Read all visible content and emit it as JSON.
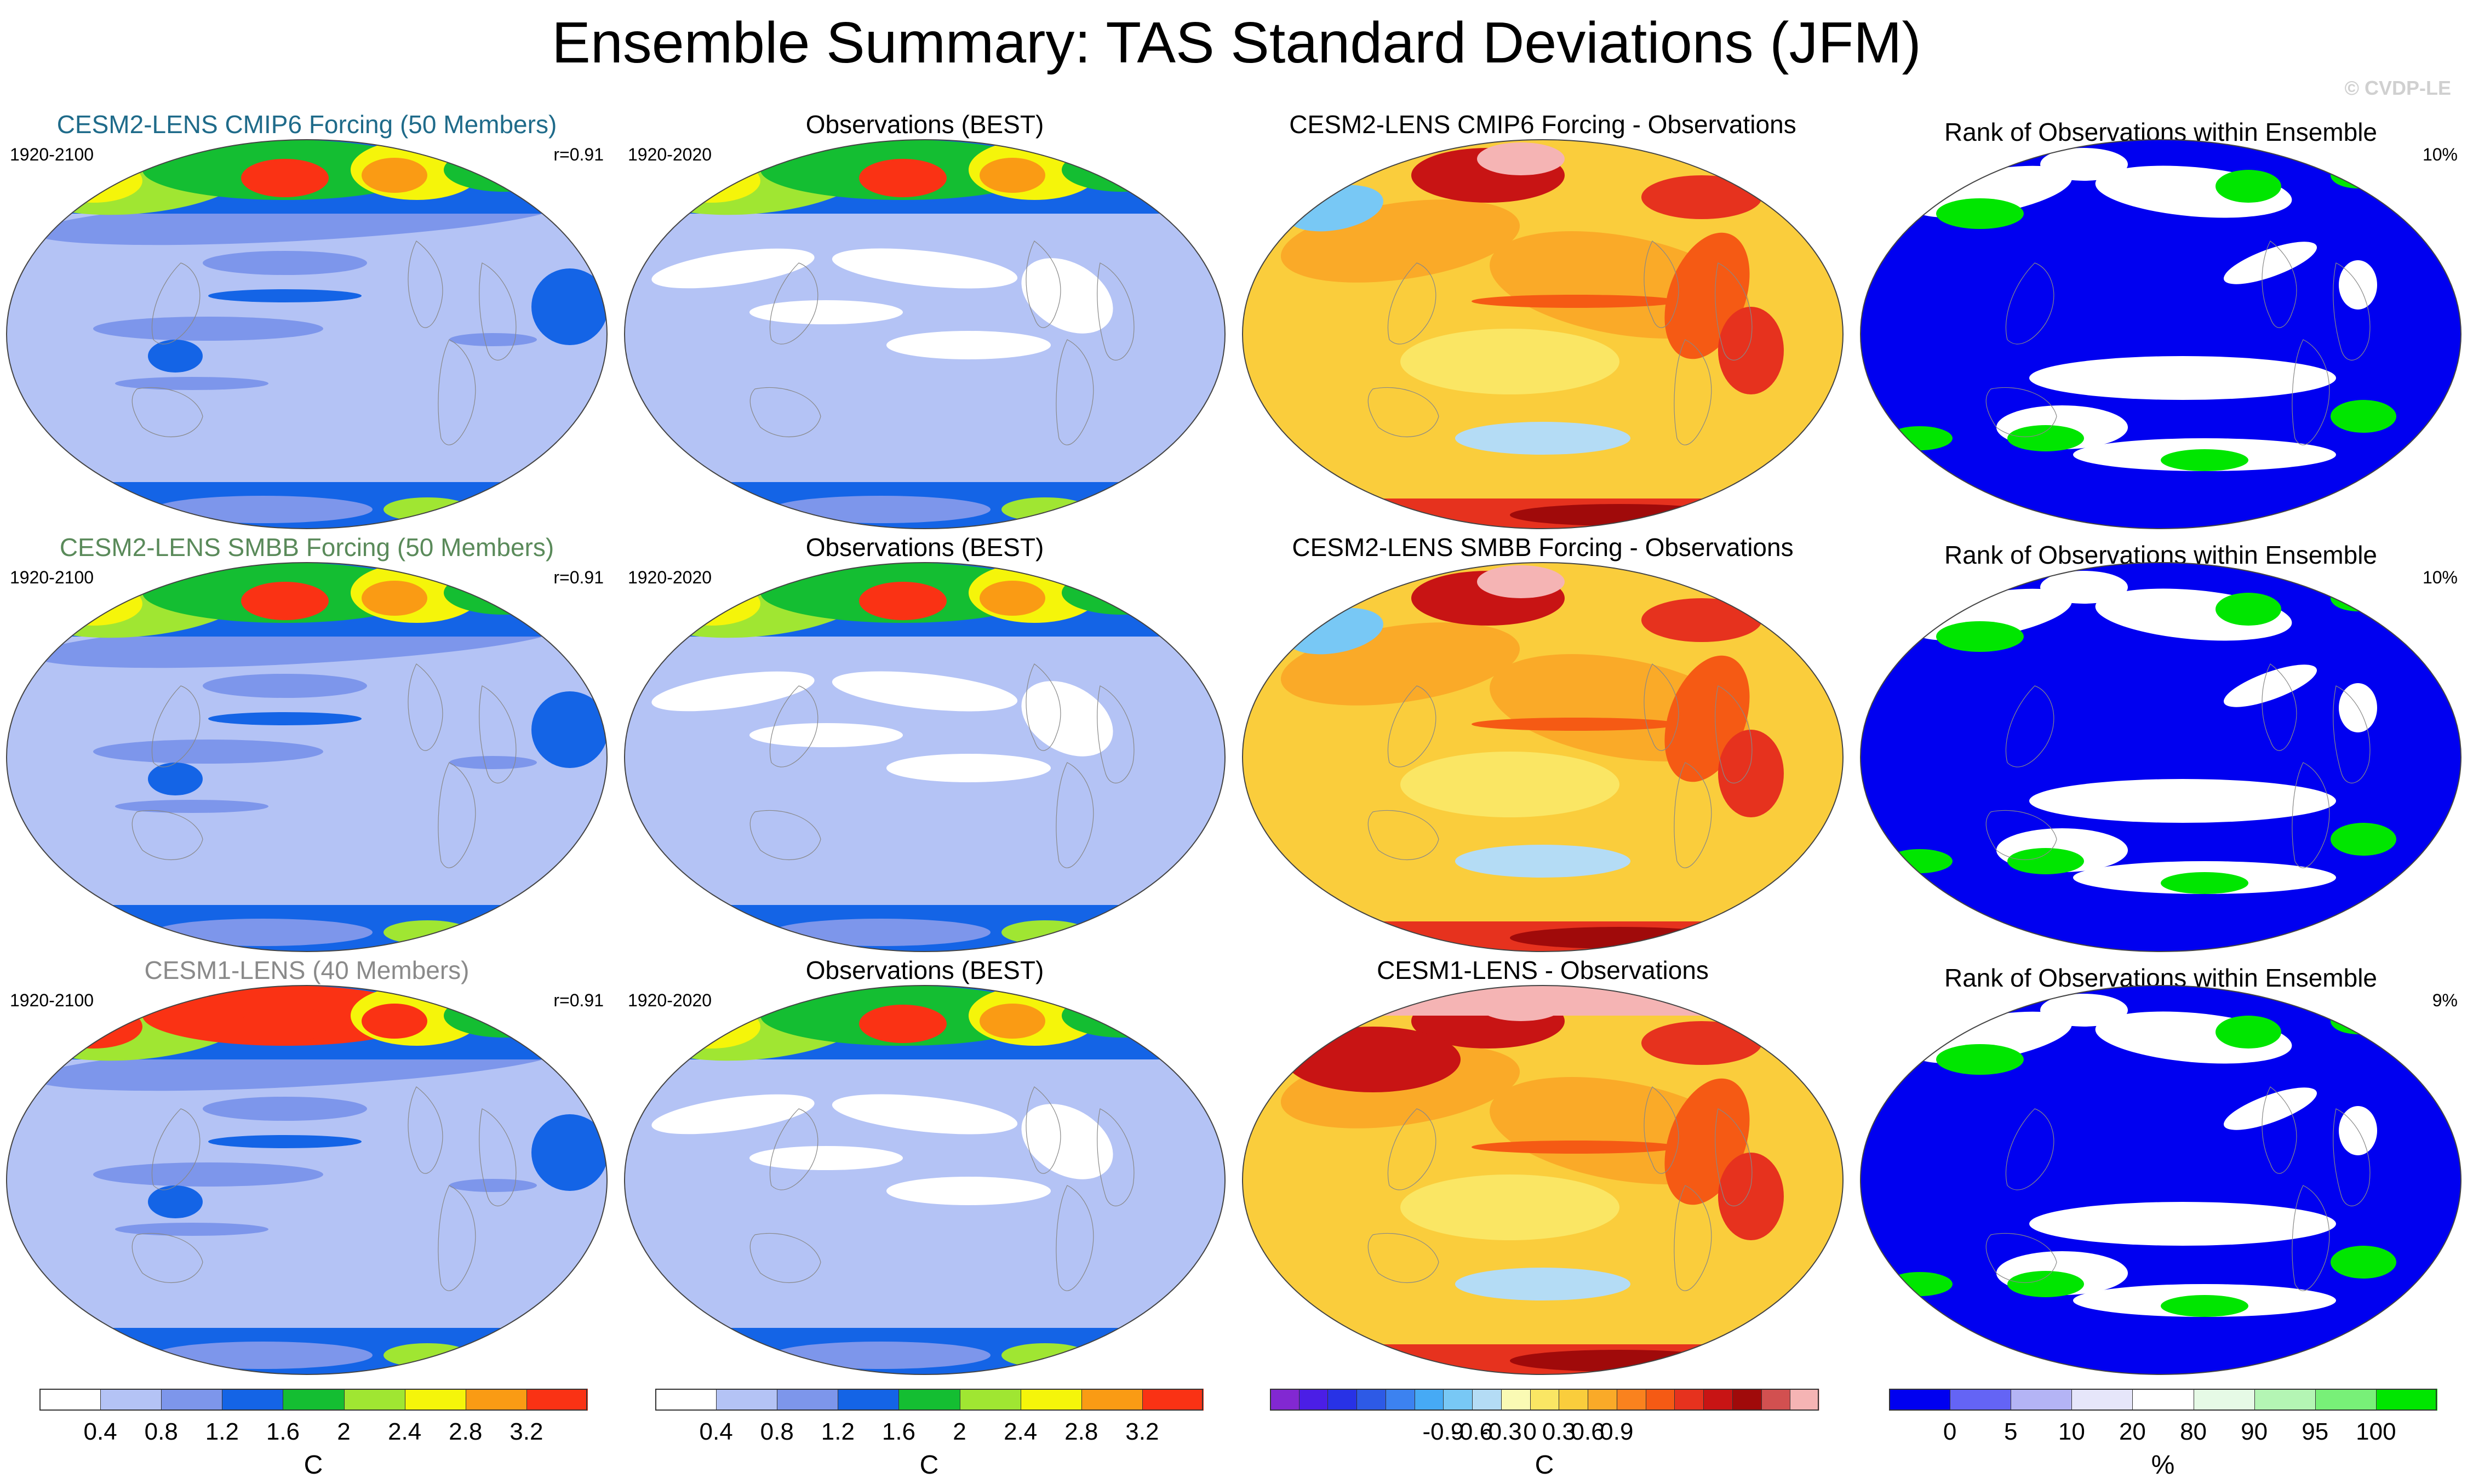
{
  "title": "Ensemble Summary: TAS Standard Deviations (JFM)",
  "copyright": "© CVDP-LE",
  "rows": [
    {
      "model": {
        "title": "CESM2-LENS CMIP6 Forcing (50 Members)",
        "title_color": "#1f6b8a",
        "period": "1920-2100",
        "corr": "r=0.91"
      },
      "obs": {
        "title": "Observations (BEST)",
        "period": "1920-2020"
      },
      "diff": {
        "title": "CESM2-LENS CMIP6 Forcing - Observations"
      },
      "rank": {
        "title": "Rank of Observations within Ensemble",
        "pct": "10%"
      }
    },
    {
      "model": {
        "title": "CESM2-LENS SMBB Forcing (50 Members)",
        "title_color": "#5a8a5a",
        "period": "1920-2100",
        "corr": "r=0.91"
      },
      "obs": {
        "title": "Observations (BEST)",
        "period": "1920-2020"
      },
      "diff": {
        "title": "CESM2-LENS SMBB Forcing - Observations"
      },
      "rank": {
        "title": "Rank of Observations within Ensemble",
        "pct": "10%"
      }
    },
    {
      "model": {
        "title": "CESM1-LENS (40 Members)",
        "title_color": "#8a8a8a",
        "period": "1920-2100",
        "corr": "r=0.91"
      },
      "obs": {
        "title": "Observations (BEST)",
        "period": "1920-2020"
      },
      "diff": {
        "title": "CESM1-LENS - Observations"
      },
      "rank": {
        "title": "Rank of Observations within Ensemble",
        "pct": "9%"
      }
    }
  ],
  "colorbars": {
    "std": {
      "unit": "C",
      "colors": [
        "#ffffff",
        "#b4c3f5",
        "#7d96eb",
        "#1464e6",
        "#14be32",
        "#a0e632",
        "#f5f50a",
        "#fa9b14",
        "#fa3214"
      ],
      "ticks": [
        "0.4",
        "0.8",
        "1.2",
        "1.6",
        "2",
        "2.4",
        "2.8",
        "3.2"
      ]
    },
    "diff": {
      "unit": "C",
      "colors": [
        "#8228d2",
        "#4b1ee6",
        "#2832e6",
        "#2d5ae6",
        "#3c82f0",
        "#46aaf5",
        "#78c8f5",
        "#b4dcf5",
        "#fafab4",
        "#fae664",
        "#facd3c",
        "#faaa28",
        "#fa821e",
        "#f55a14",
        "#e6321e",
        "#c81414",
        "#a00a0a",
        "#d25050",
        "#f5b4b4"
      ],
      "ticks": [
        "-0.9",
        "-0.6",
        "-0.3",
        "0",
        "0.3",
        "0.6",
        "0.9"
      ]
    },
    "rank": {
      "unit": "%",
      "colors": [
        "#0000f0",
        "#6464f5",
        "#b4b4f5",
        "#e6e6fa",
        "#ffffff",
        "#e6fae6",
        "#b4f5b4",
        "#78f078",
        "#00e600"
      ],
      "ticks": [
        "0",
        "5",
        "10",
        "20",
        "80",
        "90",
        "95",
        "100"
      ]
    }
  }
}
